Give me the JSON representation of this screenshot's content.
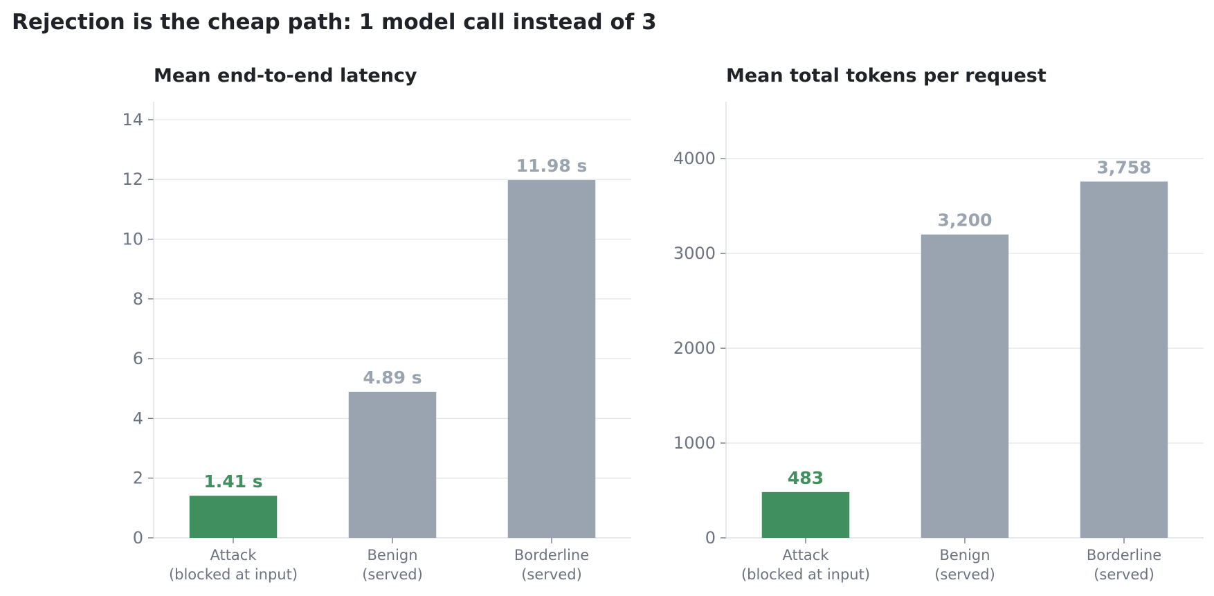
{
  "figure_title": "Rejection is the cheap path: 1 model call instead of 3",
  "colors": {
    "highlight": "#3f8f5f",
    "neutral": "#9aa4b0",
    "grid": "#e5e7eb",
    "text": "#1f2328",
    "axis_text": "#6b7280"
  },
  "chart_data": [
    {
      "type": "bar",
      "title": "Mean end-to-end latency",
      "xlabel": "",
      "ylabel": "",
      "categories": [
        "Attack\n(blocked at input)",
        "Benign\n(served)",
        "Borderline\n(served)"
      ],
      "values": [
        1.41,
        4.89,
        11.98
      ],
      "value_labels": [
        "1.41 s",
        "4.89 s",
        "11.98 s"
      ],
      "bar_colors": [
        "highlight",
        "neutral",
        "neutral"
      ],
      "ylim": [
        0,
        14.6
      ],
      "yticks": [
        0,
        2,
        4,
        6,
        8,
        10,
        12,
        14
      ],
      "grid": true,
      "legend": "none"
    },
    {
      "type": "bar",
      "title": "Mean total tokens per request",
      "xlabel": "",
      "ylabel": "",
      "categories": [
        "Attack\n(blocked at input)",
        "Benign\n(served)",
        "Borderline\n(served)"
      ],
      "values": [
        483,
        3200,
        3758
      ],
      "value_labels": [
        "483",
        "3,200",
        "3,758"
      ],
      "bar_colors": [
        "highlight",
        "neutral",
        "neutral"
      ],
      "ylim": [
        0,
        4600
      ],
      "yticks": [
        0,
        1000,
        2000,
        3000,
        4000
      ],
      "grid": true,
      "legend": "none"
    }
  ]
}
